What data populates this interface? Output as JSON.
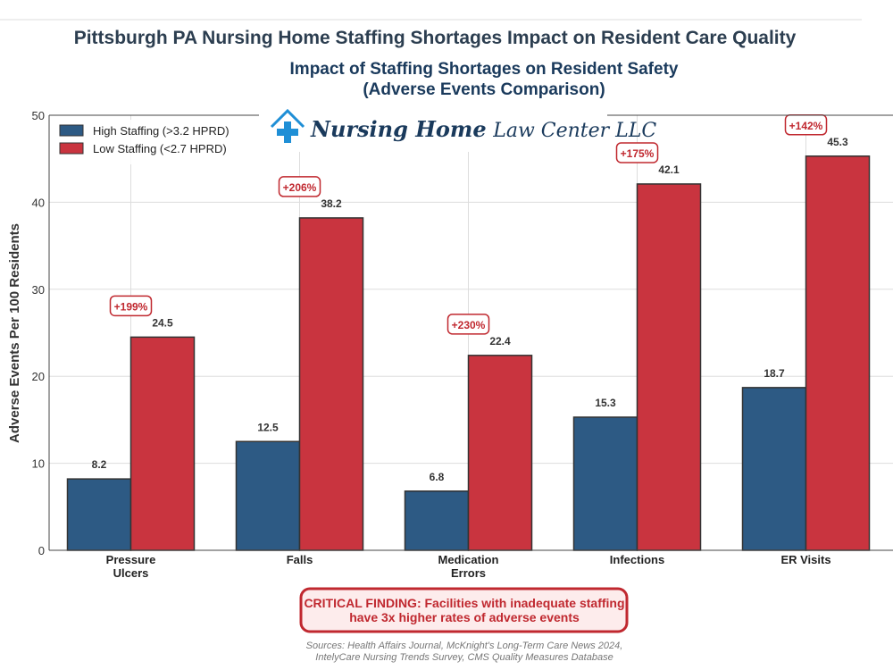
{
  "page_title": "Pittsburgh PA Nursing Home Staffing Shortages Impact on Resident Care Quality",
  "logo": {
    "text_bold": "Nursing Home",
    "text_light": "Law Center LLC"
  },
  "chart_data": {
    "type": "bar",
    "title_line1": "Impact of Staffing Shortages on Resident Safety",
    "title_line2": "(Adverse Events Comparison)",
    "ylabel": "Adverse Events Per 100 Residents",
    "xlabel": "",
    "ylim": [
      0,
      50
    ],
    "yticks": [
      0,
      10,
      20,
      30,
      40,
      50
    ],
    "grid": true,
    "legend_position": "top-left",
    "categories": [
      [
        "Pressure",
        "Ulcers"
      ],
      [
        "Falls"
      ],
      [
        "Medication",
        "Errors"
      ],
      [
        "Infections"
      ],
      [
        "ER Visits"
      ]
    ],
    "series": [
      {
        "name": "High Staffing (>3.2 HPRD)",
        "color": "#2d5a84",
        "values": [
          8.2,
          12.5,
          6.8,
          15.3,
          18.7
        ]
      },
      {
        "name": "Low Staffing (<2.7 HPRD)",
        "color": "#c9343f",
        "values": [
          24.5,
          38.2,
          22.4,
          42.1,
          45.3
        ]
      }
    ],
    "annotations": [
      "+199%",
      "+206%",
      "+230%",
      "+175%",
      "+142%"
    ]
  },
  "finding": {
    "line1": "CRITICAL FINDING: Facilities with inadequate staffing",
    "line2": "have 3x higher rates of adverse events"
  },
  "sources": {
    "line1": "Sources: Health Affairs Journal, McKnight's Long-Term Care News 2024,",
    "line2": "IntelyCare Nursing Trends Survey, CMS Quality Measures Database"
  }
}
